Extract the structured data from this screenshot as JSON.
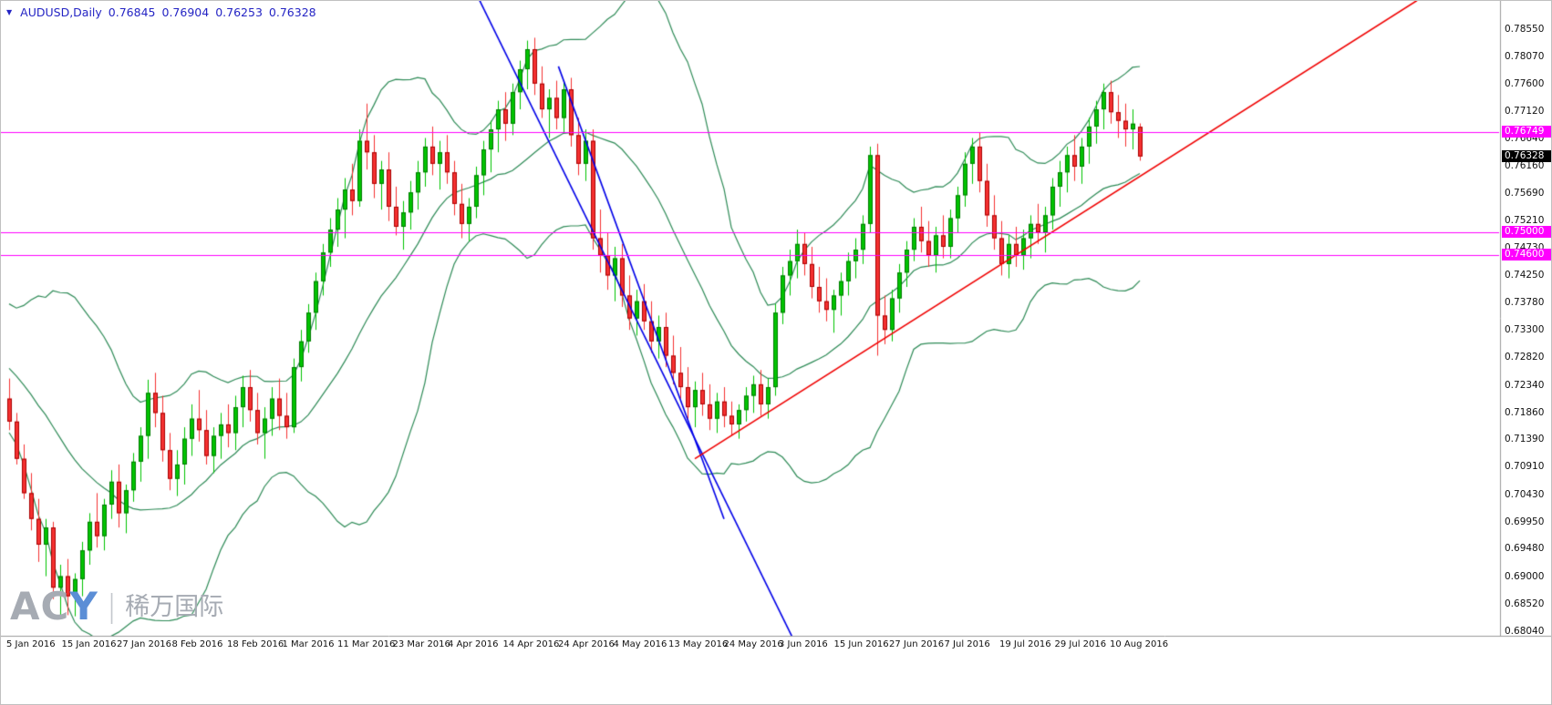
{
  "header": {
    "dropdown_icon": "▼",
    "symbol": "AUDUSD,Daily",
    "open": "0.76845",
    "high": "0.76904",
    "low": "0.76253",
    "close": "0.76328"
  },
  "watermark": {
    "brand_gray": "AC",
    "brand_blue": "Y",
    "separator": "|",
    "cn_text": "稀万国际"
  },
  "colors": {
    "background": "#ffffff",
    "up_fill": "#00c400",
    "up_stroke": "#007a00",
    "down_fill": "#f53131",
    "down_stroke": "#a80000",
    "band": "#2e8b57",
    "trend_blue": "#0000e8",
    "trend_red": "#f00000",
    "level_magenta": "#ff00ff",
    "axis_text": "#000000",
    "header_text": "#2424c4",
    "separator": "#9a9a9a",
    "current_badge_bg": "#000000",
    "badge_text": "#ffffff"
  },
  "chart_data": {
    "type": "candlestick",
    "symbol": "AUDUSD",
    "timeframe": "Daily",
    "title": "AUDUSD,Daily",
    "ohlc_format": [
      "open",
      "high",
      "low",
      "close"
    ],
    "ylim": [
      0.6796,
      0.79043
    ],
    "y_tick_labels": [
      "0.78550",
      "0.78070",
      "0.77600",
      "0.77120",
      "0.76640",
      "0.76160",
      "0.75690",
      "0.75210",
      "0.74730",
      "0.74250",
      "0.73780",
      "0.73300",
      "0.72820",
      "0.72340",
      "0.71860",
      "0.71390",
      "0.70910",
      "0.70430",
      "0.69950",
      "0.69480",
      "0.69000",
      "0.68520",
      "0.68040"
    ],
    "x_tick_labels": [
      "5 Jan 2016",
      "15 Jan 2016",
      "27 Jan 2016",
      "8 Feb 2016",
      "18 Feb 2016",
      "1 Mar 2016",
      "11 Mar 2016",
      "23 Mar 2016",
      "4 Apr 2016",
      "14 Apr 2016",
      "24 Apr 2016",
      "4 May 2016",
      "13 May 2016",
      "24 May 2016",
      "3 Jun 2016",
      "15 Jun 2016",
      "27 Jun 2016",
      "7 Jul 2016",
      "19 Jul 2016",
      "29 Jul 2016",
      "10 Aug 2016"
    ],
    "candles": [
      [
        0.721,
        0.7245,
        0.7155,
        0.717
      ],
      [
        0.717,
        0.7185,
        0.7095,
        0.7105
      ],
      [
        0.7105,
        0.713,
        0.7035,
        0.7045
      ],
      [
        0.7045,
        0.708,
        0.698,
        0.7
      ],
      [
        0.7,
        0.7035,
        0.6925,
        0.6955
      ],
      [
        0.6955,
        0.7,
        0.69,
        0.6985
      ],
      [
        0.6985,
        0.6995,
        0.686,
        0.688
      ],
      [
        0.688,
        0.692,
        0.6827,
        0.69
      ],
      [
        0.69,
        0.693,
        0.6832,
        0.6865
      ],
      [
        0.6865,
        0.6905,
        0.683,
        0.6895
      ],
      [
        0.6895,
        0.696,
        0.6865,
        0.6945
      ],
      [
        0.6945,
        0.701,
        0.692,
        0.6995
      ],
      [
        0.6995,
        0.7045,
        0.695,
        0.697
      ],
      [
        0.697,
        0.7035,
        0.6945,
        0.7025
      ],
      [
        0.7025,
        0.7085,
        0.7,
        0.7065
      ],
      [
        0.7065,
        0.7095,
        0.6985,
        0.701
      ],
      [
        0.701,
        0.706,
        0.6975,
        0.705
      ],
      [
        0.705,
        0.7115,
        0.703,
        0.71
      ],
      [
        0.71,
        0.716,
        0.7065,
        0.7145
      ],
      [
        0.7145,
        0.7243,
        0.7105,
        0.722
      ],
      [
        0.722,
        0.7255,
        0.716,
        0.7185
      ],
      [
        0.7185,
        0.7215,
        0.71,
        0.712
      ],
      [
        0.712,
        0.715,
        0.705,
        0.707
      ],
      [
        0.707,
        0.712,
        0.704,
        0.7095
      ],
      [
        0.7095,
        0.716,
        0.706,
        0.714
      ],
      [
        0.714,
        0.72,
        0.711,
        0.7175
      ],
      [
        0.7175,
        0.7225,
        0.7135,
        0.7155
      ],
      [
        0.7155,
        0.719,
        0.7095,
        0.711
      ],
      [
        0.711,
        0.716,
        0.708,
        0.7145
      ],
      [
        0.7145,
        0.7185,
        0.7105,
        0.7165
      ],
      [
        0.7165,
        0.72,
        0.7125,
        0.715
      ],
      [
        0.715,
        0.7215,
        0.712,
        0.7195
      ],
      [
        0.7195,
        0.725,
        0.716,
        0.723
      ],
      [
        0.723,
        0.726,
        0.717,
        0.719
      ],
      [
        0.719,
        0.722,
        0.713,
        0.715
      ],
      [
        0.715,
        0.7195,
        0.7105,
        0.7175
      ],
      [
        0.7175,
        0.723,
        0.7145,
        0.721
      ],
      [
        0.721,
        0.7245,
        0.7155,
        0.718
      ],
      [
        0.718,
        0.722,
        0.714,
        0.716
      ],
      [
        0.716,
        0.728,
        0.715,
        0.7265
      ],
      [
        0.7265,
        0.733,
        0.724,
        0.731
      ],
      [
        0.731,
        0.7375,
        0.729,
        0.736
      ],
      [
        0.736,
        0.743,
        0.733,
        0.7415
      ],
      [
        0.7415,
        0.748,
        0.739,
        0.7465
      ],
      [
        0.7465,
        0.7525,
        0.744,
        0.7505
      ],
      [
        0.7505,
        0.756,
        0.7475,
        0.754
      ],
      [
        0.754,
        0.7595,
        0.749,
        0.7575
      ],
      [
        0.7575,
        0.762,
        0.753,
        0.7555
      ],
      [
        0.7555,
        0.768,
        0.7545,
        0.766
      ],
      [
        0.766,
        0.7725,
        0.761,
        0.764
      ],
      [
        0.764,
        0.767,
        0.756,
        0.7585
      ],
      [
        0.7585,
        0.7625,
        0.754,
        0.761
      ],
      [
        0.761,
        0.764,
        0.752,
        0.7545
      ],
      [
        0.7545,
        0.758,
        0.7495,
        0.751
      ],
      [
        0.751,
        0.7555,
        0.747,
        0.7535
      ],
      [
        0.7535,
        0.759,
        0.7505,
        0.757
      ],
      [
        0.757,
        0.7625,
        0.754,
        0.7605
      ],
      [
        0.7605,
        0.7665,
        0.758,
        0.765
      ],
      [
        0.765,
        0.7685,
        0.76,
        0.762
      ],
      [
        0.762,
        0.766,
        0.7575,
        0.764
      ],
      [
        0.764,
        0.767,
        0.7585,
        0.7605
      ],
      [
        0.7605,
        0.7625,
        0.753,
        0.755
      ],
      [
        0.755,
        0.7585,
        0.749,
        0.7515
      ],
      [
        0.7515,
        0.756,
        0.7485,
        0.7545
      ],
      [
        0.7545,
        0.7615,
        0.7525,
        0.76
      ],
      [
        0.76,
        0.766,
        0.7565,
        0.7645
      ],
      [
        0.7645,
        0.7695,
        0.7605,
        0.768
      ],
      [
        0.768,
        0.773,
        0.764,
        0.7715
      ],
      [
        0.7715,
        0.7745,
        0.766,
        0.769
      ],
      [
        0.769,
        0.776,
        0.767,
        0.7745
      ],
      [
        0.7745,
        0.78,
        0.7715,
        0.7785
      ],
      [
        0.7785,
        0.7835,
        0.775,
        0.782
      ],
      [
        0.782,
        0.784,
        0.774,
        0.776
      ],
      [
        0.776,
        0.779,
        0.77,
        0.7715
      ],
      [
        0.7715,
        0.775,
        0.7665,
        0.7735
      ],
      [
        0.7735,
        0.7765,
        0.768,
        0.77
      ],
      [
        0.77,
        0.7765,
        0.7675,
        0.775
      ],
      [
        0.775,
        0.777,
        0.765,
        0.767
      ],
      [
        0.767,
        0.77,
        0.76,
        0.762
      ],
      [
        0.762,
        0.768,
        0.759,
        0.766
      ],
      [
        0.766,
        0.768,
        0.747,
        0.749
      ],
      [
        0.749,
        0.754,
        0.743,
        0.746
      ],
      [
        0.746,
        0.75,
        0.74,
        0.7425
      ],
      [
        0.7425,
        0.7475,
        0.738,
        0.7455
      ],
      [
        0.7455,
        0.748,
        0.737,
        0.739
      ],
      [
        0.739,
        0.7425,
        0.733,
        0.735
      ],
      [
        0.735,
        0.74,
        0.732,
        0.738
      ],
      [
        0.738,
        0.741,
        0.733,
        0.7345
      ],
      [
        0.7345,
        0.738,
        0.729,
        0.731
      ],
      [
        0.731,
        0.7355,
        0.728,
        0.7335
      ],
      [
        0.7335,
        0.736,
        0.7265,
        0.7285
      ],
      [
        0.7285,
        0.732,
        0.7235,
        0.7255
      ],
      [
        0.7255,
        0.73,
        0.721,
        0.723
      ],
      [
        0.723,
        0.7265,
        0.7175,
        0.7195
      ],
      [
        0.7195,
        0.724,
        0.716,
        0.7225
      ],
      [
        0.7225,
        0.7255,
        0.718,
        0.72
      ],
      [
        0.72,
        0.7235,
        0.7155,
        0.7175
      ],
      [
        0.7175,
        0.722,
        0.715,
        0.7205
      ],
      [
        0.7205,
        0.723,
        0.716,
        0.718
      ],
      [
        0.718,
        0.7205,
        0.7145,
        0.7165
      ],
      [
        0.7165,
        0.72,
        0.714,
        0.719
      ],
      [
        0.719,
        0.723,
        0.717,
        0.7215
      ],
      [
        0.7215,
        0.725,
        0.7185,
        0.7235
      ],
      [
        0.7235,
        0.726,
        0.718,
        0.72
      ],
      [
        0.72,
        0.7245,
        0.7175,
        0.723
      ],
      [
        0.723,
        0.7375,
        0.7215,
        0.736
      ],
      [
        0.736,
        0.744,
        0.734,
        0.7425
      ],
      [
        0.7425,
        0.747,
        0.739,
        0.745
      ],
      [
        0.745,
        0.7505,
        0.742,
        0.748
      ],
      [
        0.748,
        0.75,
        0.7425,
        0.7445
      ],
      [
        0.7445,
        0.7475,
        0.7385,
        0.7405
      ],
      [
        0.7405,
        0.744,
        0.736,
        0.738
      ],
      [
        0.738,
        0.742,
        0.7345,
        0.7365
      ],
      [
        0.7365,
        0.74,
        0.7325,
        0.739
      ],
      [
        0.739,
        0.743,
        0.7355,
        0.7415
      ],
      [
        0.7415,
        0.7465,
        0.739,
        0.745
      ],
      [
        0.745,
        0.749,
        0.742,
        0.747
      ],
      [
        0.747,
        0.753,
        0.7445,
        0.7515
      ],
      [
        0.7515,
        0.765,
        0.75,
        0.7635
      ],
      [
        0.7635,
        0.7655,
        0.7285,
        0.7355
      ],
      [
        0.7355,
        0.739,
        0.7305,
        0.733
      ],
      [
        0.733,
        0.74,
        0.731,
        0.7385
      ],
      [
        0.7385,
        0.7445,
        0.736,
        0.743
      ],
      [
        0.743,
        0.7485,
        0.7405,
        0.747
      ],
      [
        0.747,
        0.7525,
        0.745,
        0.751
      ],
      [
        0.751,
        0.7545,
        0.7465,
        0.7485
      ],
      [
        0.7485,
        0.752,
        0.744,
        0.746
      ],
      [
        0.746,
        0.751,
        0.743,
        0.7495
      ],
      [
        0.7495,
        0.753,
        0.7455,
        0.7475
      ],
      [
        0.7475,
        0.754,
        0.7455,
        0.7525
      ],
      [
        0.7525,
        0.758,
        0.75,
        0.7565
      ],
      [
        0.7565,
        0.764,
        0.7545,
        0.762
      ],
      [
        0.762,
        0.7665,
        0.7585,
        0.765
      ],
      [
        0.765,
        0.7675,
        0.757,
        0.759
      ],
      [
        0.759,
        0.762,
        0.751,
        0.753
      ],
      [
        0.753,
        0.7565,
        0.747,
        0.749
      ],
      [
        0.749,
        0.752,
        0.7425,
        0.7445
      ],
      [
        0.7445,
        0.7495,
        0.742,
        0.748
      ],
      [
        0.748,
        0.751,
        0.744,
        0.746
      ],
      [
        0.746,
        0.7505,
        0.7435,
        0.749
      ],
      [
        0.749,
        0.753,
        0.7455,
        0.7515
      ],
      [
        0.7515,
        0.755,
        0.748,
        0.75
      ],
      [
        0.75,
        0.7545,
        0.7465,
        0.753
      ],
      [
        0.753,
        0.7595,
        0.7505,
        0.758
      ],
      [
        0.758,
        0.7625,
        0.7545,
        0.7605
      ],
      [
        0.7605,
        0.765,
        0.757,
        0.7635
      ],
      [
        0.7635,
        0.767,
        0.759,
        0.7615
      ],
      [
        0.7615,
        0.7665,
        0.7585,
        0.765
      ],
      [
        0.765,
        0.77,
        0.762,
        0.7685
      ],
      [
        0.7685,
        0.773,
        0.7655,
        0.7715
      ],
      [
        0.7715,
        0.776,
        0.768,
        0.7745
      ],
      [
        0.7745,
        0.7765,
        0.769,
        0.771
      ],
      [
        0.771,
        0.774,
        0.7665,
        0.7695
      ],
      [
        0.7695,
        0.7725,
        0.765,
        0.768
      ],
      [
        0.768,
        0.7715,
        0.7645,
        0.769
      ],
      [
        0.76845,
        0.76904,
        0.76253,
        0.76328
      ]
    ],
    "bollinger": {
      "period": 20,
      "deviation": 2,
      "seed_closes": [
        0.74,
        0.738,
        0.7355,
        0.733,
        0.734,
        0.731,
        0.729,
        0.73,
        0.727,
        0.725,
        0.726,
        0.723,
        0.721,
        0.722,
        0.724,
        0.7255,
        0.7235,
        0.7215,
        0.7195,
        0.7205
      ]
    },
    "levels": [
      {
        "price": 0.76749,
        "label": "0.76749"
      },
      {
        "price": 0.75,
        "label": "0.75000"
      },
      {
        "price": 0.746,
        "label": "0.74600"
      }
    ],
    "current_price": {
      "price": 0.76328,
      "label": "0.76328"
    },
    "trendlines": [
      {
        "id": "downtrend-channel-main",
        "color_key": "trend_blue",
        "from": {
          "index": 64.5,
          "price": 0.7905
        },
        "to": {
          "index": 107.5,
          "price": 0.679
        }
      },
      {
        "id": "downtrend-channel-inner",
        "color_key": "trend_blue",
        "from": {
          "index": 75.3,
          "price": 0.779
        },
        "to": {
          "index": 98.0,
          "price": 0.7
        }
      },
      {
        "id": "uptrend-support-line",
        "color_key": "trend_red",
        "from": {
          "index": 94.0,
          "price": 0.7105
        },
        "to": {
          "index": 193.0,
          "price": 0.7905
        }
      }
    ]
  }
}
